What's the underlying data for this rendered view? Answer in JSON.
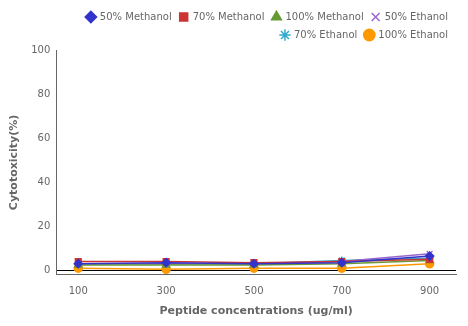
{
  "chart_data": {
    "type": "line",
    "x": [
      100,
      300,
      500,
      700,
      900
    ],
    "series": [
      {
        "name": "50% Methanol",
        "color": "#3333CC",
        "marker": "diamond",
        "values": [
          3.0,
          3.5,
          3.0,
          3.5,
          6.5
        ]
      },
      {
        "name": "70% Methanol",
        "color": "#CC3333",
        "marker": "square",
        "values": [
          4.0,
          4.0,
          3.5,
          4.0,
          5.0
        ]
      },
      {
        "name": "100% Methanol",
        "color": "#669933",
        "marker": "triangle",
        "values": [
          2.5,
          2.5,
          2.5,
          3.0,
          4.5
        ]
      },
      {
        "name": "50% Ethanol",
        "color": "#9966CC",
        "marker": "x",
        "values": [
          3.0,
          3.0,
          3.0,
          4.0,
          7.5
        ]
      },
      {
        "name": "70% Ethanol",
        "color": "#33AACC",
        "marker": "star",
        "values": [
          3.0,
          3.0,
          3.0,
          4.5,
          5.5
        ]
      },
      {
        "name": "100% Ethanol",
        "color": "#FF9900",
        "marker": "circle",
        "values": [
          1.0,
          0.5,
          1.0,
          1.0,
          3.0
        ]
      }
    ],
    "xlabel": "Peptide concentrations (ug/ml)",
    "ylabel": "Cytotoxicity(%)",
    "xlim": [
      50,
      960
    ],
    "xticks": [
      100,
      300,
      500,
      700,
      900
    ],
    "ylim": [
      -2,
      100
    ],
    "yticks": [
      0,
      20,
      40,
      60,
      80,
      100
    ],
    "grid": false,
    "legend": "upper right"
  }
}
